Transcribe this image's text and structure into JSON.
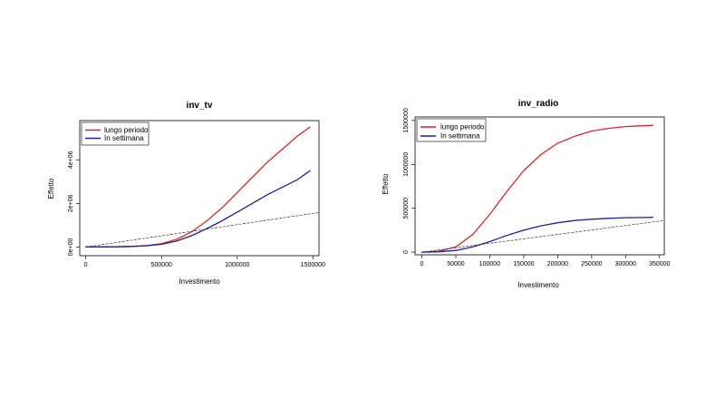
{
  "chart_data": [
    {
      "type": "line",
      "title": "inv_tv",
      "xlabel": "Investimento",
      "ylabel": "Effetto",
      "xlim": [
        -40000,
        1540000
      ],
      "ylim": [
        -400000,
        5800000
      ],
      "xticks": [
        0,
        500000,
        1000000,
        1500000
      ],
      "xtick_labels": [
        "0",
        "500000",
        "1000000",
        "1500000"
      ],
      "yticks": [
        0,
        2000000,
        4000000
      ],
      "ytick_labels": [
        "0e+00",
        "2e+06",
        "4e+06"
      ],
      "grid": false,
      "legend_position": "top-left",
      "series": [
        {
          "name": "lungo periodo",
          "color": "#d62728",
          "style": "solid",
          "x": [
            0,
            100000,
            200000,
            300000,
            400000,
            500000,
            600000,
            700000,
            800000,
            900000,
            1000000,
            1100000,
            1200000,
            1300000,
            1400000,
            1480000
          ],
          "y": [
            0,
            2000,
            8000,
            25000,
            60000,
            150000,
            350000,
            700000,
            1200000,
            1800000,
            2500000,
            3200000,
            3900000,
            4500000,
            5100000,
            5500000
          ]
        },
        {
          "name": "In settimana",
          "color": "#1f1fa0",
          "style": "solid",
          "x": [
            0,
            100000,
            200000,
            300000,
            400000,
            500000,
            600000,
            700000,
            800000,
            900000,
            1000000,
            1100000,
            1200000,
            1300000,
            1400000,
            1480000
          ],
          "y": [
            0,
            2000,
            8000,
            25000,
            55000,
            120000,
            270000,
            520000,
            850000,
            1200000,
            1600000,
            2000000,
            2400000,
            2750000,
            3100000,
            3500000
          ]
        },
        {
          "name": "",
          "color": "#333333",
          "style": "dashed",
          "x": [
            0,
            1540000
          ],
          "y": [
            0,
            1580000
          ]
        }
      ]
    },
    {
      "type": "line",
      "title": "inv_radio",
      "xlabel": "Investimento",
      "ylabel": "Effetto",
      "xlim": [
        -10000,
        357000
      ],
      "ylim": [
        -30000,
        1540000
      ],
      "xticks": [
        0,
        50000,
        100000,
        150000,
        200000,
        250000,
        300000,
        350000
      ],
      "xtick_labels": [
        "0",
        "50000",
        "100000",
        "150000",
        "200000",
        "250000",
        "300000",
        "350000"
      ],
      "yticks": [
        0,
        500000,
        1000000,
        1500000
      ],
      "ytick_labels": [
        "0",
        "500000",
        "1000000",
        "1500000"
      ],
      "grid": false,
      "legend_position": "top-left",
      "series": [
        {
          "name": "lungo periodo",
          "color": "#d62728",
          "style": "solid",
          "x": [
            0,
            25000,
            50000,
            75000,
            100000,
            125000,
            150000,
            175000,
            200000,
            225000,
            250000,
            275000,
            300000,
            325000,
            340000
          ],
          "y": [
            0,
            10000,
            60000,
            200000,
            430000,
            690000,
            930000,
            1110000,
            1240000,
            1320000,
            1380000,
            1410000,
            1430000,
            1440000,
            1445000
          ]
        },
        {
          "name": "In settimana",
          "color": "#1f1fa0",
          "style": "solid",
          "x": [
            0,
            25000,
            50000,
            75000,
            100000,
            125000,
            150000,
            175000,
            200000,
            225000,
            250000,
            275000,
            300000,
            325000,
            340000
          ],
          "y": [
            0,
            4000,
            20000,
            60000,
            120000,
            190000,
            250000,
            300000,
            335000,
            360000,
            375000,
            385000,
            392000,
            395000,
            397000
          ]
        },
        {
          "name": "",
          "color": "#333333",
          "style": "dashed",
          "x": [
            0,
            357000
          ],
          "y": [
            0,
            360000
          ]
        }
      ]
    }
  ]
}
